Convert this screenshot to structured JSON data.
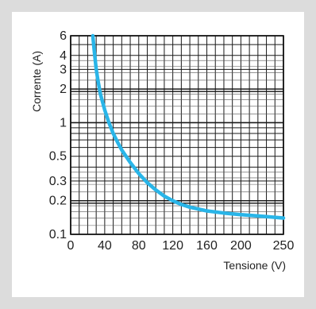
{
  "chart_data": {
    "type": "line",
    "xlabel": "Tensione (V)",
    "ylabel": "Corrente (A)",
    "xlim": [
      0,
      250
    ],
    "ylim": [
      0.1,
      6
    ],
    "yscale": "log",
    "grid": true,
    "x_ticks": [
      "0",
      "40",
      "80",
      "120",
      "160",
      "200",
      "250"
    ],
    "y_ticks": [
      "0.1",
      "0.2",
      "0.3",
      "0.5",
      "1",
      "2",
      "3",
      "4",
      "6"
    ],
    "series": [
      {
        "color": "#29b5e8",
        "x": [
          26,
          28,
          30,
          32,
          35,
          40,
          45,
          50,
          55,
          60,
          70,
          80,
          90,
          100,
          110,
          120,
          130,
          140,
          160,
          180,
          200,
          225,
          250
        ],
        "y": [
          6,
          4.2,
          3.0,
          2.4,
          1.8,
          1.3,
          1.0,
          0.8,
          0.67,
          0.57,
          0.44,
          0.35,
          0.29,
          0.25,
          0.22,
          0.2,
          0.185,
          0.175,
          0.162,
          0.155,
          0.15,
          0.145,
          0.14
        ]
      }
    ]
  }
}
